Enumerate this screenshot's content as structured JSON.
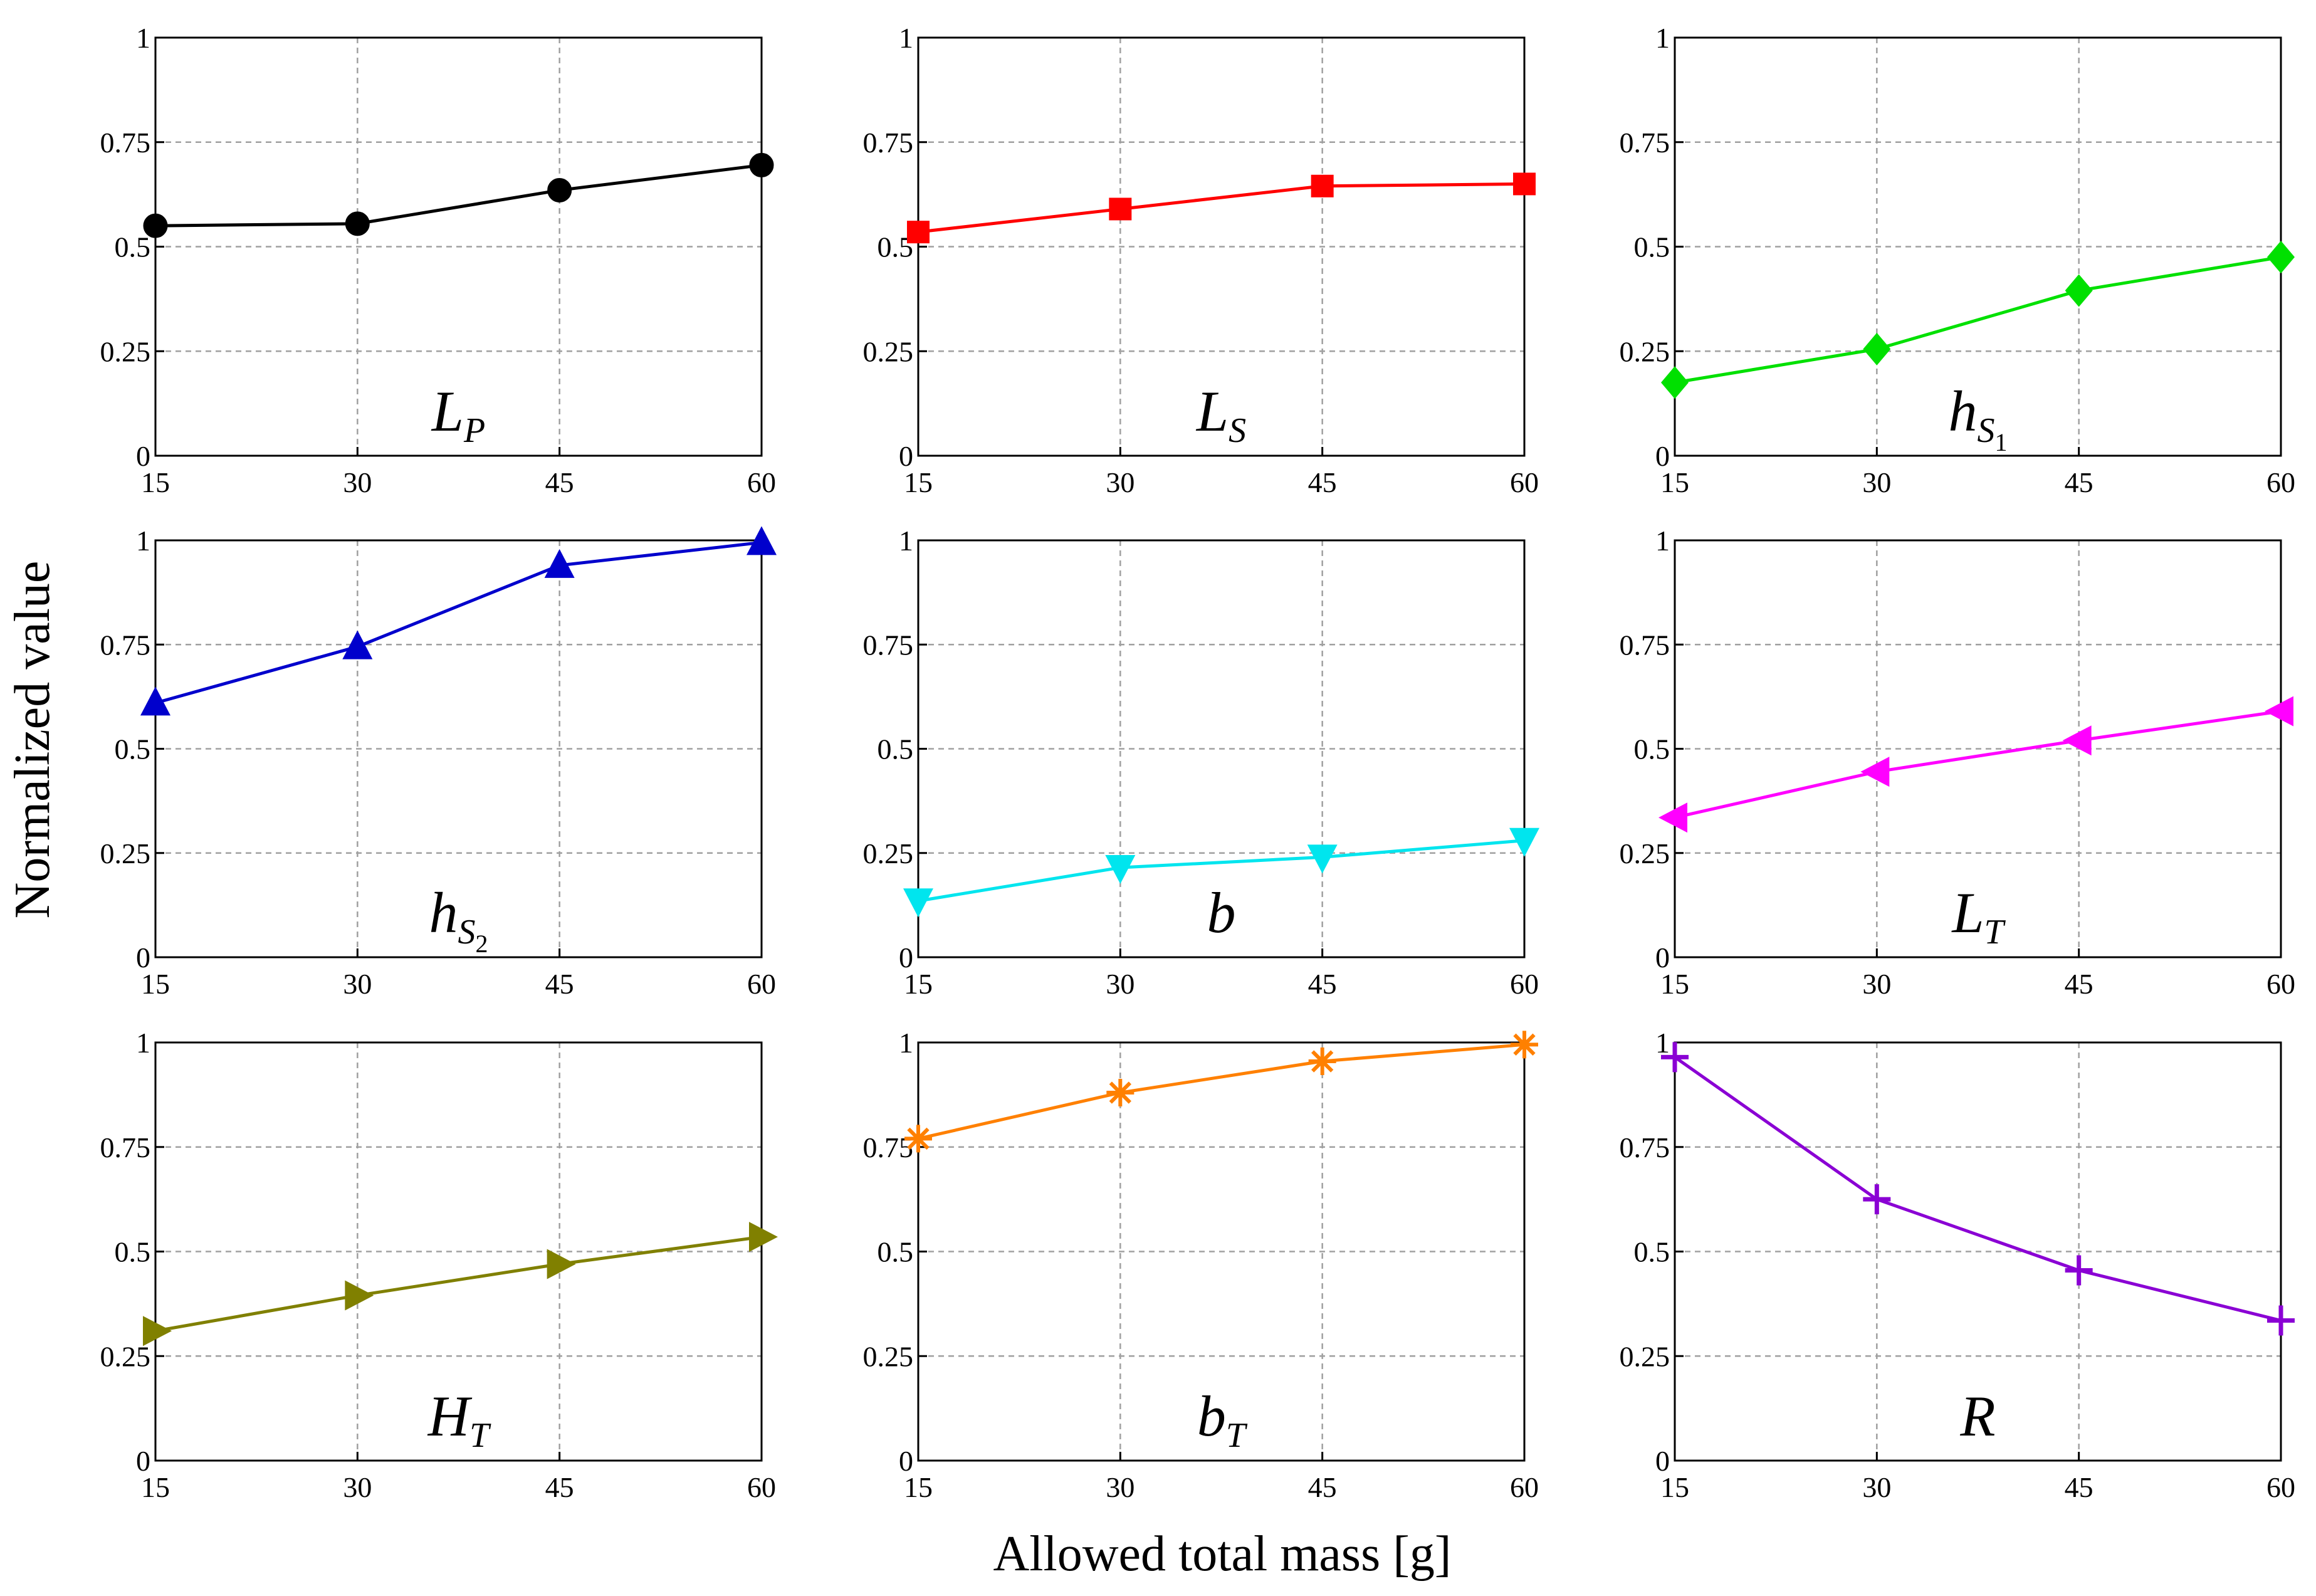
{
  "xlabel": "Allowed total mass [g]",
  "ylabel": "Normalized value",
  "chart_data": [
    {
      "type": "line",
      "title_main": "L",
      "title_sub": "P",
      "title_subsub": "",
      "color": "#000000",
      "marker": "circle",
      "x": [
        15,
        30,
        45,
        60
      ],
      "y": [
        0.55,
        0.555,
        0.635,
        0.695
      ],
      "xticks": [
        "15",
        "30",
        "45",
        "60"
      ],
      "yticks": [
        "0",
        "0.25",
        "0.5",
        "0.75",
        "1"
      ],
      "xlim": [
        15,
        60
      ],
      "ylim": [
        0,
        1
      ],
      "grid": true
    },
    {
      "type": "line",
      "title_main": "L",
      "title_sub": "S",
      "title_subsub": "",
      "color": "#ff0000",
      "marker": "square",
      "x": [
        15,
        30,
        45,
        60
      ],
      "y": [
        0.535,
        0.59,
        0.645,
        0.65
      ],
      "xticks": [
        "15",
        "30",
        "45",
        "60"
      ],
      "yticks": [
        "0",
        "0.25",
        "0.5",
        "0.75",
        "1"
      ],
      "xlim": [
        15,
        60
      ],
      "ylim": [
        0,
        1
      ],
      "grid": true
    },
    {
      "type": "line",
      "title_main": "h",
      "title_sub": "S",
      "title_subsub": "1",
      "color": "#00e000",
      "marker": "diamond",
      "x": [
        15,
        30,
        45,
        60
      ],
      "y": [
        0.175,
        0.255,
        0.395,
        0.475
      ],
      "xticks": [
        "15",
        "30",
        "45",
        "60"
      ],
      "yticks": [
        "0",
        "0.25",
        "0.5",
        "0.75",
        "1"
      ],
      "xlim": [
        15,
        60
      ],
      "ylim": [
        0,
        1
      ],
      "grid": true
    },
    {
      "type": "line",
      "title_main": "h",
      "title_sub": "S",
      "title_subsub": "2",
      "color": "#0000cc",
      "marker": "triangle-up",
      "x": [
        15,
        30,
        45,
        60
      ],
      "y": [
        0.61,
        0.745,
        0.94,
        0.995
      ],
      "xticks": [
        "15",
        "30",
        "45",
        "60"
      ],
      "yticks": [
        "0",
        "0.25",
        "0.5",
        "0.75",
        "1"
      ],
      "xlim": [
        15,
        60
      ],
      "ylim": [
        0,
        1
      ],
      "grid": true
    },
    {
      "type": "line",
      "title_main": "b",
      "title_sub": "",
      "title_subsub": "",
      "color": "#00e5ee",
      "marker": "triangle-down",
      "x": [
        15,
        30,
        45,
        60
      ],
      "y": [
        0.135,
        0.215,
        0.24,
        0.28
      ],
      "xticks": [
        "15",
        "30",
        "45",
        "60"
      ],
      "yticks": [
        "0",
        "0.25",
        "0.5",
        "0.75",
        "1"
      ],
      "xlim": [
        15,
        60
      ],
      "ylim": [
        0,
        1
      ],
      "grid": true
    },
    {
      "type": "line",
      "title_main": "L",
      "title_sub": "T",
      "title_subsub": "",
      "color": "#ff00ff",
      "marker": "triangle-left",
      "x": [
        15,
        30,
        45,
        60
      ],
      "y": [
        0.335,
        0.445,
        0.52,
        0.59
      ],
      "xticks": [
        "15",
        "30",
        "45",
        "60"
      ],
      "yticks": [
        "0",
        "0.25",
        "0.5",
        "0.75",
        "1"
      ],
      "xlim": [
        15,
        60
      ],
      "ylim": [
        0,
        1
      ],
      "grid": true
    },
    {
      "type": "line",
      "title_main": "H",
      "title_sub": "T",
      "title_subsub": "",
      "color": "#808000",
      "marker": "triangle-right",
      "x": [
        15,
        30,
        45,
        60
      ],
      "y": [
        0.31,
        0.395,
        0.47,
        0.535
      ],
      "xticks": [
        "15",
        "30",
        "45",
        "60"
      ],
      "yticks": [
        "0",
        "0.25",
        "0.5",
        "0.75",
        "1"
      ],
      "xlim": [
        15,
        60
      ],
      "ylim": [
        0,
        1
      ],
      "grid": true
    },
    {
      "type": "line",
      "title_main": "b",
      "title_sub": "T",
      "title_subsub": "",
      "color": "#ff8000",
      "marker": "asterisk",
      "x": [
        15,
        30,
        45,
        60
      ],
      "y": [
        0.77,
        0.88,
        0.955,
        0.995
      ],
      "xticks": [
        "15",
        "30",
        "45",
        "60"
      ],
      "yticks": [
        "0",
        "0.25",
        "0.5",
        "0.75",
        "1"
      ],
      "xlim": [
        15,
        60
      ],
      "ylim": [
        0,
        1
      ],
      "grid": true
    },
    {
      "type": "line",
      "title_main": "R",
      "title_sub": "",
      "title_subsub": "",
      "color": "#8a00d4",
      "marker": "plus",
      "x": [
        15,
        30,
        45,
        60
      ],
      "y": [
        0.965,
        0.625,
        0.455,
        0.335
      ],
      "xticks": [
        "15",
        "30",
        "45",
        "60"
      ],
      "yticks": [
        "0",
        "0.25",
        "0.5",
        "0.75",
        "1"
      ],
      "xlim": [
        15,
        60
      ],
      "ylim": [
        0,
        1
      ],
      "grid": true
    }
  ]
}
